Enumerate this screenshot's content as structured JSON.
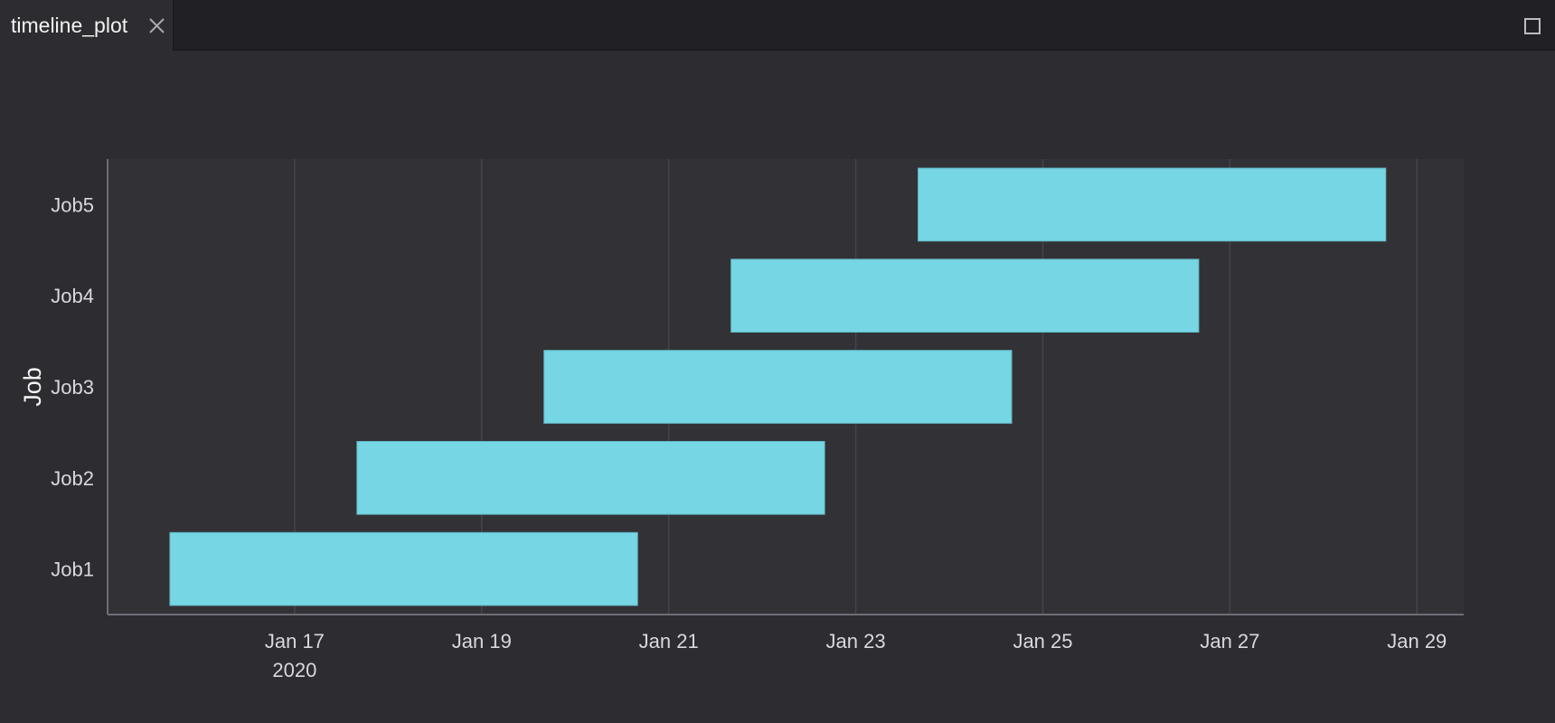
{
  "tab": {
    "title": "timeline_plot"
  },
  "chart_data": {
    "type": "timeline",
    "ylabel": "Job",
    "categories": [
      "Job1",
      "Job2",
      "Job3",
      "Job4",
      "Job5"
    ],
    "bars": [
      {
        "task": "Job1",
        "start": "2020-01-15 16:00",
        "end": "2020-01-20 16:00"
      },
      {
        "task": "Job2",
        "start": "2020-01-17 16:00",
        "end": "2020-01-22 16:00"
      },
      {
        "task": "Job3",
        "start": "2020-01-19 16:00",
        "end": "2020-01-24 16:00"
      },
      {
        "task": "Job4",
        "start": "2020-01-21 16:00",
        "end": "2020-01-26 16:00"
      },
      {
        "task": "Job5",
        "start": "2020-01-23 16:00",
        "end": "2020-01-28 16:00"
      }
    ],
    "x_ticks": [
      {
        "date": "2020-01-17",
        "label": "Jan 17",
        "sublabel": "2020"
      },
      {
        "date": "2020-01-19",
        "label": "Jan 19"
      },
      {
        "date": "2020-01-21",
        "label": "Jan 21"
      },
      {
        "date": "2020-01-23",
        "label": "Jan 23"
      },
      {
        "date": "2020-01-25",
        "label": "Jan 25"
      },
      {
        "date": "2020-01-27",
        "label": "Jan 27"
      },
      {
        "date": "2020-01-29",
        "label": "Jan 29"
      }
    ],
    "xlim": [
      "2020-01-15 00:00",
      "2020-01-29 12:00"
    ],
    "grid": true,
    "colors": {
      "bar": "#76d6e3",
      "bar_border": "#62b9c6",
      "plot_bg": "#323136",
      "grid": "#45444a",
      "axis": "#6f6e75",
      "tick_text": "#d9d8dc",
      "label_text": "#f4f4f4"
    }
  },
  "icons": {
    "tab_close": "close-icon",
    "maximize": "maximize-icon"
  }
}
